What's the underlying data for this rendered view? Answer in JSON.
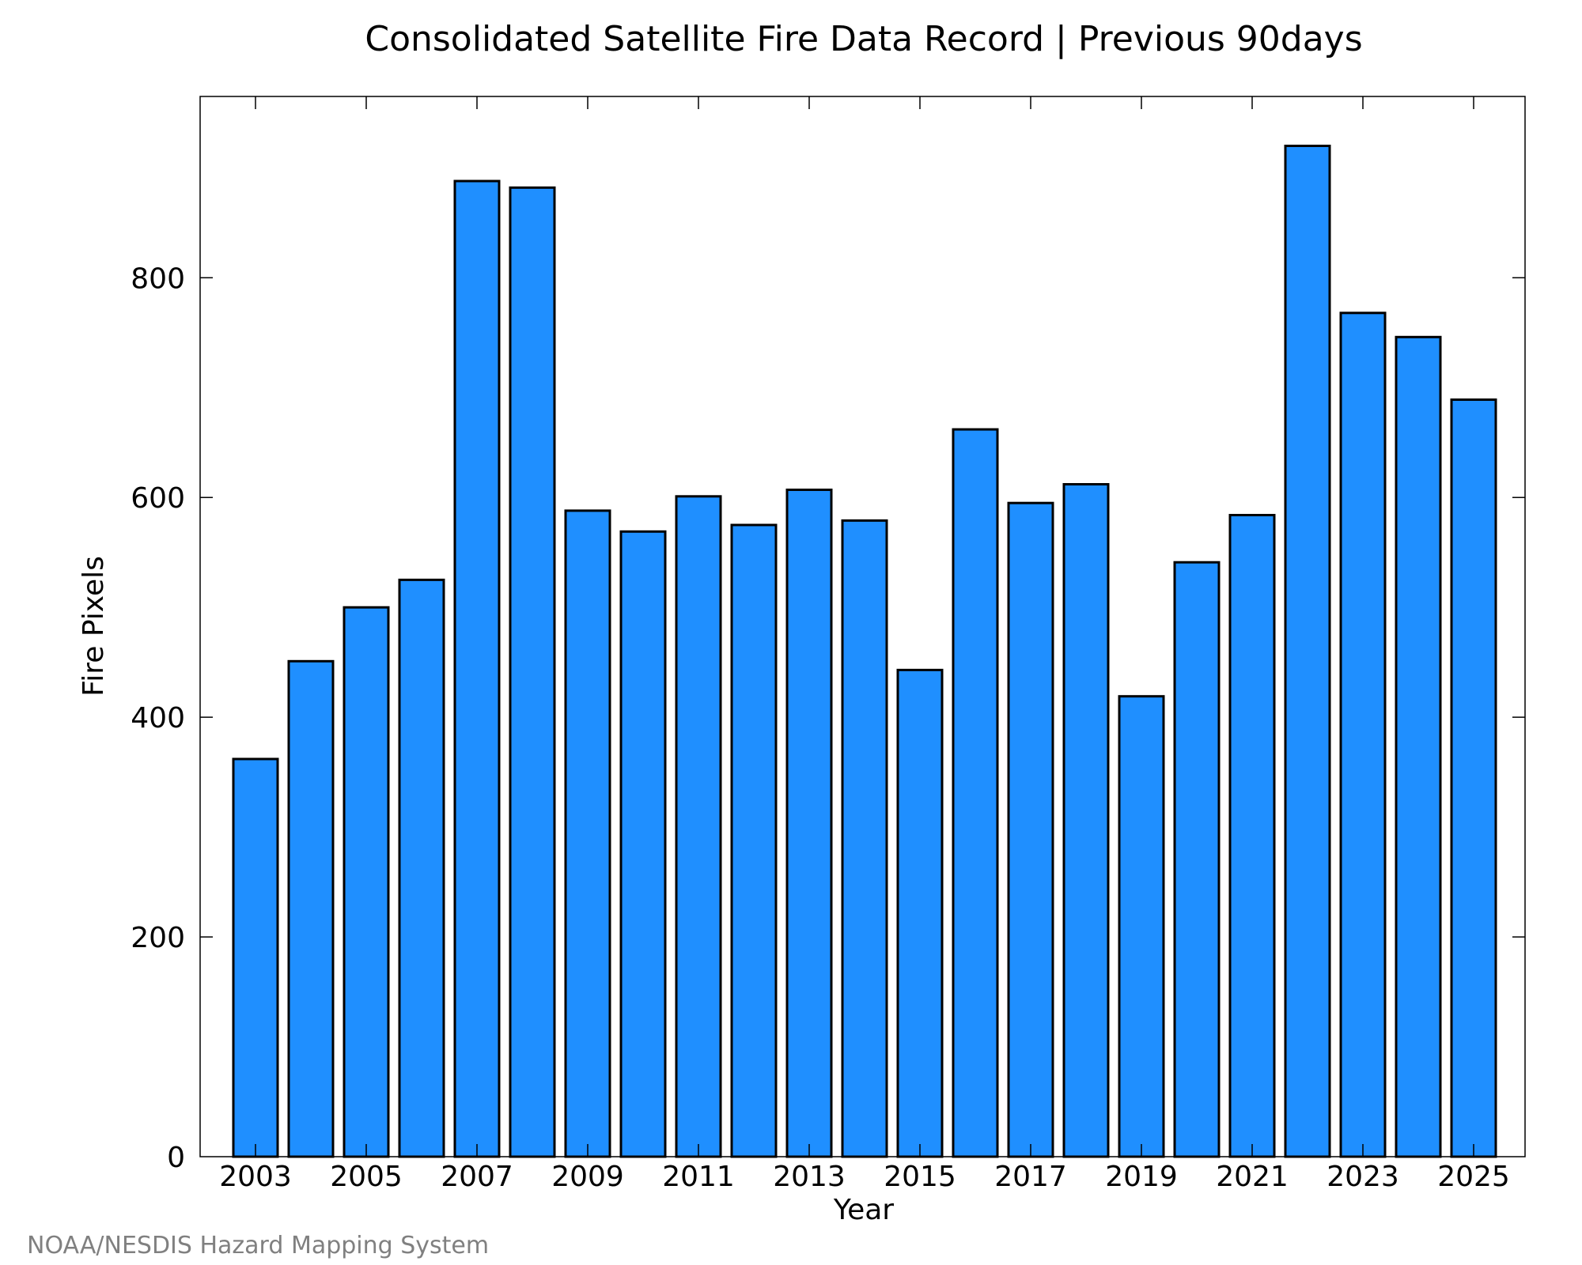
{
  "chart_data": {
    "type": "bar",
    "title": "Consolidated Satellite Fire Data Record | Previous 90days",
    "xlabel": "Year",
    "ylabel": "Fire Pixels",
    "categories": [
      "2003",
      "2004",
      "2005",
      "2006",
      "2007",
      "2008",
      "2009",
      "2010",
      "2011",
      "2012",
      "2013",
      "2014",
      "2015",
      "2016",
      "2017",
      "2018",
      "2019",
      "2020",
      "2021",
      "2022",
      "2023",
      "2024",
      "2025"
    ],
    "x_tick_labels": [
      "2003",
      "2005",
      "2007",
      "2009",
      "2011",
      "2013",
      "2015",
      "2017",
      "2019",
      "2021",
      "2023",
      "2025"
    ],
    "values": [
      362,
      451,
      500,
      525,
      888,
      882,
      588,
      569,
      601,
      575,
      607,
      579,
      443,
      662,
      595,
      612,
      419,
      541,
      584,
      920,
      768,
      746,
      689
    ],
    "ylim": [
      0,
      965
    ],
    "y_ticks": [
      0,
      200,
      400,
      600,
      800
    ],
    "grid": false,
    "legend": "none",
    "colors": {
      "bar_fill": "#1f8fff",
      "bar_edge": "#000000",
      "credit_text": "#808080"
    },
    "credit": "NOAA/NESDIS Hazard Mapping System"
  }
}
